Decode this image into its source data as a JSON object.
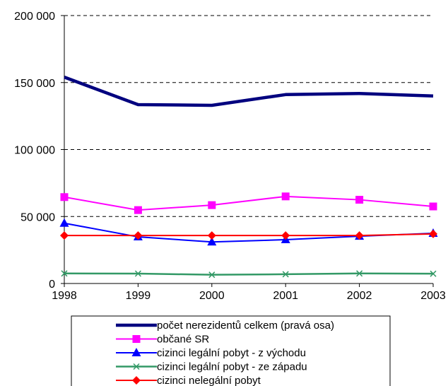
{
  "chart_data": {
    "type": "line",
    "title": "",
    "xlabel": "",
    "ylabel": "",
    "x": [
      "1998",
      "1999",
      "2000",
      "2001",
      "2002",
      "2003"
    ],
    "ylim": [
      0,
      200000
    ],
    "yticks": [
      0,
      50000,
      100000,
      150000,
      200000
    ],
    "ytick_labels": [
      "0",
      "50 000",
      "100 000",
      "150 000",
      "200 000"
    ],
    "grid": "horizontal dashed",
    "legend_position": "bottom",
    "series": [
      {
        "name": "počet nerezidentů celkem (pravá osa)",
        "color": "#00007f",
        "marker": "none",
        "values": [
          154000,
          133500,
          133000,
          141000,
          141800,
          140000
        ]
      },
      {
        "name": "občané SR",
        "color": "#ff00ff",
        "marker": "square",
        "values": [
          64500,
          54800,
          58500,
          65000,
          62500,
          57500
        ]
      },
      {
        "name": "cizinci legální pobyt - z východu",
        "color": "#0000ff",
        "marker": "triangle",
        "values": [
          45000,
          34800,
          31000,
          32700,
          35300,
          37500
        ]
      },
      {
        "name": "cizinci legální pobyt - ze západu",
        "color": "#339966",
        "marker": "x",
        "values": [
          7500,
          7400,
          6500,
          6900,
          7500,
          7300
        ]
      },
      {
        "name": "cizinci nelegální pobyt",
        "color": "#ff0000",
        "marker": "diamond",
        "values": [
          35800,
          35800,
          35800,
          35800,
          35800,
          37000
        ]
      }
    ]
  }
}
